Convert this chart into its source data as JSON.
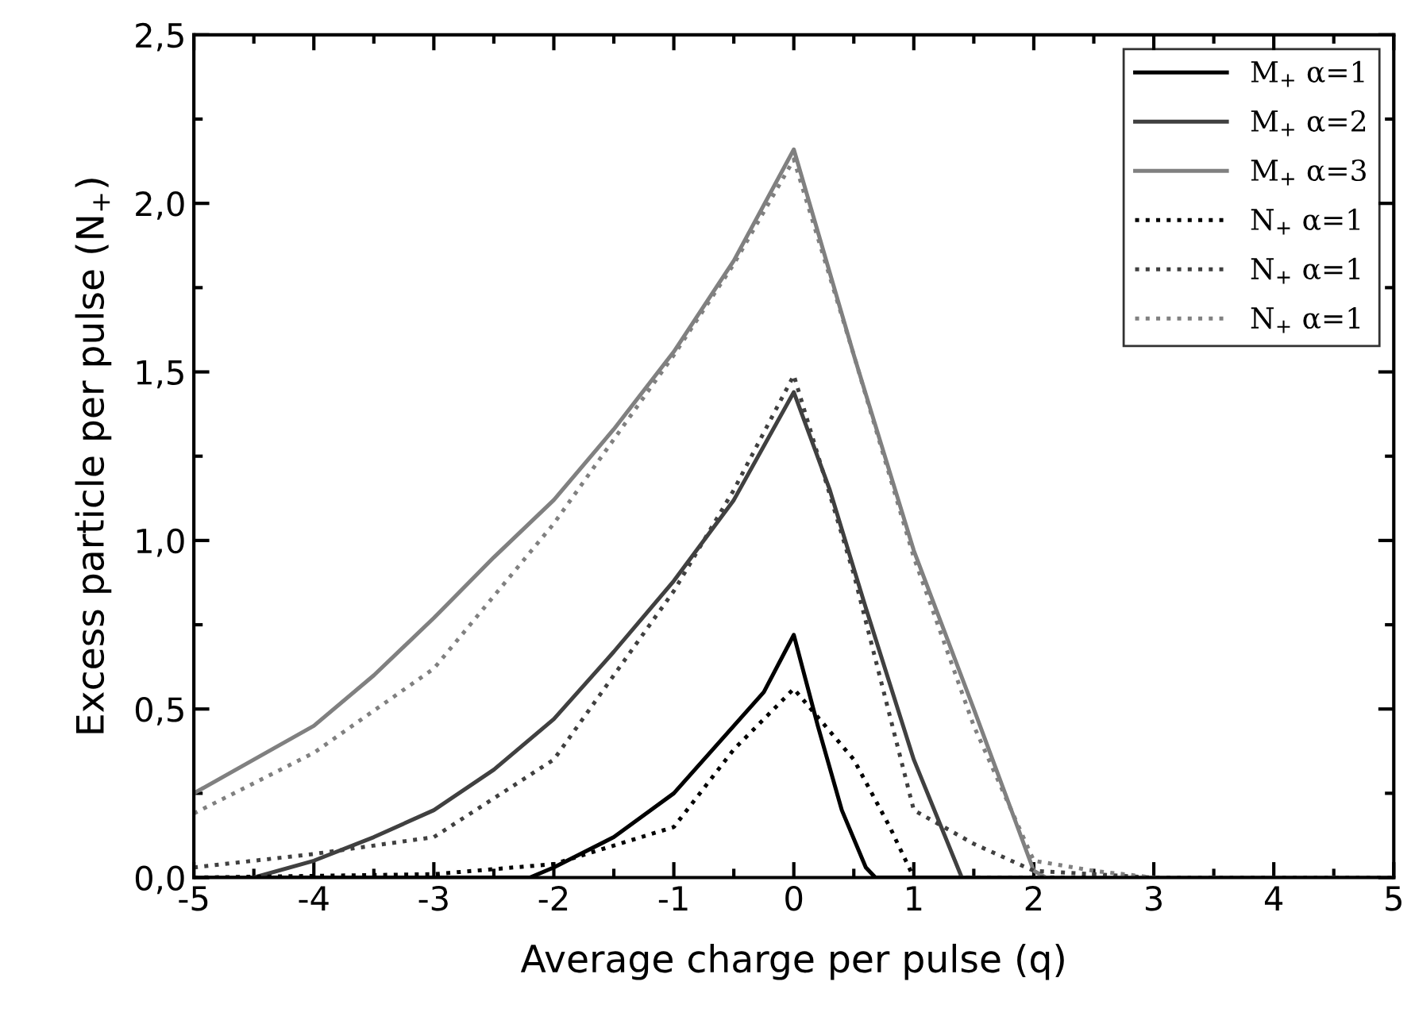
{
  "chart_data": {
    "type": "line",
    "xlabel": "Average charge per pulse (q)",
    "ylabel": "Excess particle per pulse (N$_{+}$)",
    "xlim": [
      -5,
      5
    ],
    "xticks": [
      -5,
      -4,
      -3,
      -2,
      -1,
      0,
      1,
      2,
      3,
      4,
      5
    ],
    "ylim": [
      0,
      2.5
    ],
    "yticks": [
      {
        "value": 0,
        "label": "0,0"
      },
      {
        "value": 0.5,
        "label": "0,5"
      },
      {
        "value": 1,
        "label": "1,0"
      },
      {
        "value": 1.5,
        "label": "1,5"
      },
      {
        "value": 2,
        "label": "2,0"
      },
      {
        "value": 2.5,
        "label": "2,5"
      }
    ],
    "grid": false,
    "legend": "top right",
    "series": [
      {
        "name": "M$_{+}$ α=1",
        "color": "#000000",
        "line_style": "solid",
        "x": [
          -5,
          -2.2,
          -2,
          -1.5,
          -1,
          -0.5,
          -0.25,
          0,
          0.2,
          0.4,
          0.6,
          0.68,
          5
        ],
        "values": [
          0,
          0,
          0.03,
          0.12,
          0.25,
          0.45,
          0.55,
          0.72,
          0.45,
          0.2,
          0.03,
          0,
          0
        ]
      },
      {
        "name": "M$_{+}$ α=2",
        "color": "#404040",
        "line_style": "solid",
        "x": [
          -5,
          -4.5,
          -4,
          -3.5,
          -3,
          -2.5,
          -2,
          -1.5,
          -1,
          -0.5,
          0,
          0.3,
          0.6,
          1,
          1.4,
          5
        ],
        "values": [
          0,
          0,
          0.05,
          0.12,
          0.2,
          0.32,
          0.47,
          0.67,
          0.88,
          1.12,
          1.44,
          1.15,
          0.8,
          0.35,
          0,
          0
        ]
      },
      {
        "name": "M$_{+}$ α=3",
        "color": "#808080",
        "line_style": "solid",
        "x": [
          -5,
          -4.5,
          -4,
          -3.5,
          -3,
          -2.5,
          -2,
          -1.5,
          -1,
          -0.5,
          0,
          0.5,
          1,
          1.5,
          2,
          2.1,
          5
        ],
        "values": [
          0.25,
          0.35,
          0.45,
          0.6,
          0.77,
          0.95,
          1.12,
          1.33,
          1.56,
          1.83,
          2.16,
          1.55,
          0.97,
          0.5,
          0.02,
          0,
          0
        ]
      },
      {
        "name": "N$_{+}$ α=1",
        "color": "#000000",
        "line_style": "dotted",
        "x": [
          -5,
          -3,
          -2,
          -1,
          -0.5,
          0,
          0.5,
          0.8,
          1,
          5
        ],
        "values": [
          0,
          0.01,
          0.04,
          0.15,
          0.38,
          0.56,
          0.35,
          0.15,
          0,
          0
        ]
      },
      {
        "name": "N$_{+}$ α=1",
        "color": "#404040",
        "line_style": "dotted",
        "x": [
          -5,
          -4,
          -3,
          -2,
          -1.5,
          -1,
          -0.5,
          0,
          0.5,
          1,
          1.5,
          2,
          3,
          5
        ],
        "values": [
          0.03,
          0.07,
          0.12,
          0.35,
          0.6,
          0.85,
          1.15,
          1.49,
          0.9,
          0.2,
          0.1,
          0.02,
          0,
          0
        ]
      },
      {
        "name": "N$_{+}$ α=1",
        "color": "#808080",
        "line_style": "dotted",
        "x": [
          -5,
          -4,
          -3,
          -2,
          -1,
          -0.5,
          0,
          0.5,
          1,
          1.5,
          2,
          2.5,
          3,
          5
        ],
        "values": [
          0.19,
          0.37,
          0.62,
          1.05,
          1.55,
          1.82,
          2.13,
          1.55,
          0.95,
          0.45,
          0.05,
          0.02,
          0,
          0
        ]
      }
    ]
  }
}
